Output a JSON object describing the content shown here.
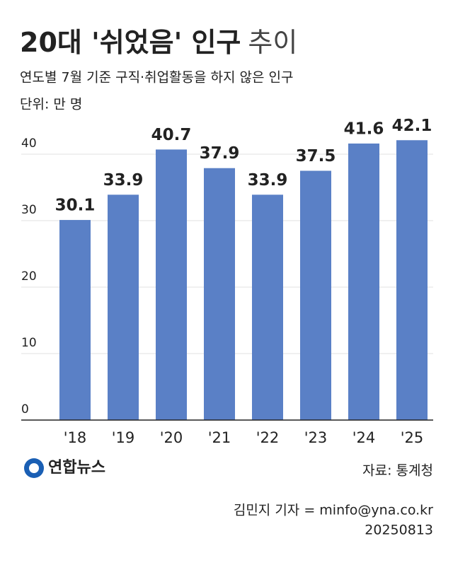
{
  "chart_data": {
    "type": "bar",
    "title": [
      "20대 '쉬었음' 인구",
      "추이"
    ],
    "subtitle": "연도별 7월 기준 구직·취업활동을 하지 않은 인구",
    "unit": "단위: 만 명",
    "categories": [
      "'18",
      "'19",
      "'20",
      "'21",
      "'22",
      "'23",
      "'24",
      "'25"
    ],
    "values": [
      30.1,
      33.9,
      40.7,
      37.9,
      33.9,
      37.5,
      41.6,
      42.1
    ],
    "color": "#5a80c6",
    "ylim": [
      0,
      45
    ],
    "yticks": [
      0,
      10,
      20,
      30,
      40
    ],
    "grid": true,
    "logo": "연합뉴스",
    "source": "자료: 통계청",
    "byline": "김민지 기자 = minfo@yna.co.kr",
    "date": "20250813"
  }
}
